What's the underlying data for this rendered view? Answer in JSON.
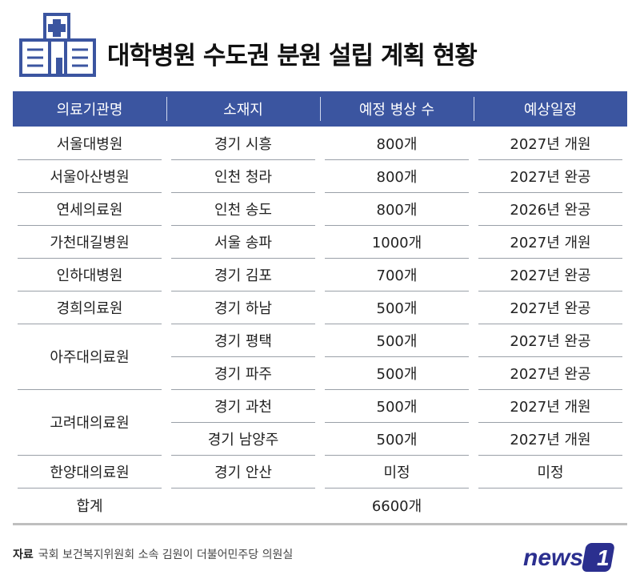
{
  "title": "대학병원 수도권 분원 설립 계획 현황",
  "colors": {
    "header_bg": "#3b55a0",
    "logo_accent": "#3b55a0",
    "brand": "#2b2f8f"
  },
  "table": {
    "headers": [
      "의료기관명",
      "소재지",
      "예정 병상 수",
      "예상일정"
    ],
    "rows": [
      {
        "institution": "서울대병원",
        "location": "경기 시흥",
        "beds": "800개",
        "schedule": "2027년 개원"
      },
      {
        "institution": "서울아산병원",
        "location": "인천 청라",
        "beds": "800개",
        "schedule": "2027년 완공"
      },
      {
        "institution": "연세의료원",
        "location": "인천 송도",
        "beds": "800개",
        "schedule": "2026년 완공"
      },
      {
        "institution": "가천대길병원",
        "location": "서울 송파",
        "beds": "1000개",
        "schedule": "2027년 개원"
      },
      {
        "institution": "인하대병원",
        "location": "경기 김포",
        "beds": "700개",
        "schedule": "2027년 완공"
      },
      {
        "institution": "경희의료원",
        "location": "경기 하남",
        "beds": "500개",
        "schedule": "2027년 완공"
      },
      {
        "institution": "아주대의료원",
        "location": "경기 평택",
        "beds": "500개",
        "schedule": "2027년 완공"
      },
      {
        "institution": "",
        "location": "경기 파주",
        "beds": "500개",
        "schedule": "2027년 완공"
      },
      {
        "institution": "고려대의료원",
        "location": "경기 과천",
        "beds": "500개",
        "schedule": "2027년 개원"
      },
      {
        "institution": "",
        "location": "경기 남양주",
        "beds": "500개",
        "schedule": "2027년 개원"
      },
      {
        "institution": "한양대의료원",
        "location": "경기 안산",
        "beds": "미정",
        "schedule": "미정"
      }
    ],
    "total": {
      "label": "합계",
      "beds": "6600개"
    }
  },
  "footer": {
    "source_label": "자료",
    "source_text": "국회 보건복지위원회 소속 김원이 더불어민주당 의원실"
  },
  "brand": {
    "text": "news",
    "mark": "1"
  }
}
